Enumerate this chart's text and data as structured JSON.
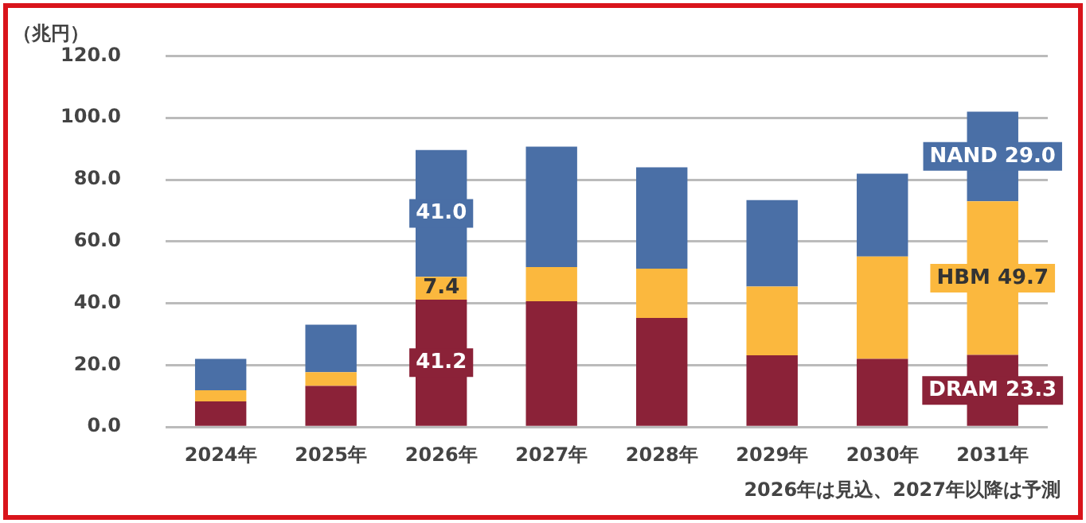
{
  "chart_data": {
    "type": "bar",
    "stacked": true,
    "ylabel": "（兆円）",
    "categories": [
      "2024年",
      "2025年",
      "2026年",
      "2027年",
      "2028年",
      "2029年",
      "2030年",
      "2031年"
    ],
    "series": [
      {
        "color": "#8b2238",
        "values": [
          8.3,
          13.3,
          41.2,
          40.7,
          35.3,
          23.2,
          22.0,
          23.3
        ],
        "value_labels": [
          null,
          null,
          "41.2",
          null,
          null,
          null,
          null,
          "DRAM 23.3"
        ]
      },
      {
        "color": "#fbb83e",
        "values": [
          3.6,
          4.4,
          7.4,
          11.0,
          15.9,
          22.2,
          33.1,
          49.7
        ],
        "value_labels": [
          null,
          null,
          "7.4",
          null,
          null,
          null,
          null,
          "HBM 49.7"
        ]
      },
      {
        "color": "#4a6fa6",
        "values": [
          10.1,
          15.4,
          41.0,
          39.0,
          32.8,
          28.0,
          26.8,
          29.0
        ],
        "value_labels": [
          null,
          null,
          "41.0",
          null,
          null,
          null,
          null,
          "NAND 29.0"
        ]
      }
    ],
    "ylim": [
      0,
      120
    ],
    "yticks": [
      {
        "value": 0,
        "label": "0.0"
      },
      {
        "value": 20,
        "label": "20.0"
      },
      {
        "value": 40,
        "label": "40.0"
      },
      {
        "value": 60,
        "label": "60.0"
      },
      {
        "value": 80,
        "label": "80.0"
      },
      {
        "value": 100,
        "label": "100.0"
      },
      {
        "value": 120,
        "label": "120.0"
      }
    ],
    "grid": "y",
    "legend": false,
    "annotations": [
      "2026年は見込、2027年以降は予測"
    ]
  }
}
